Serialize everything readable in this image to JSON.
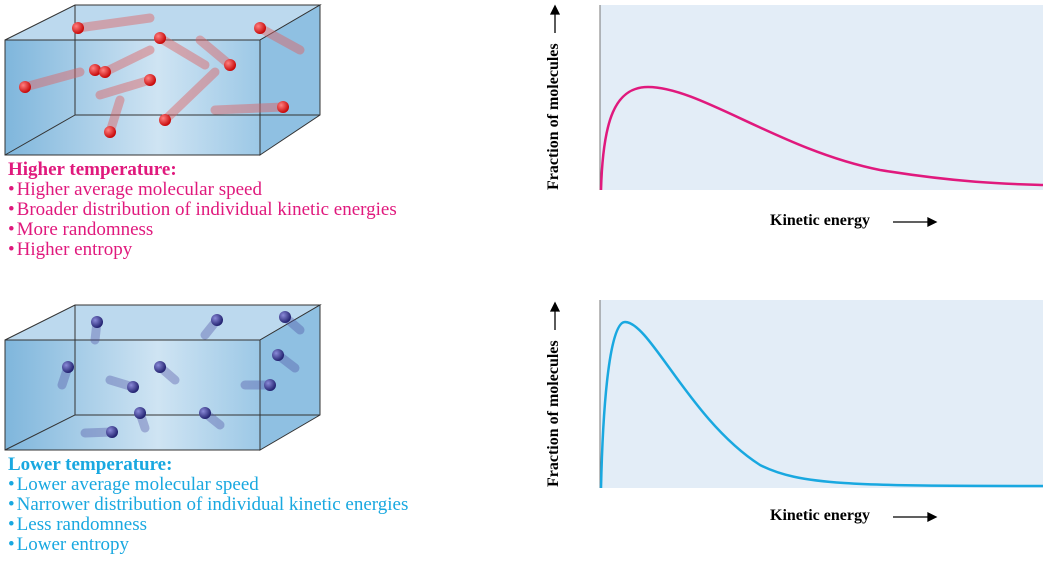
{
  "panels": [
    {
      "heading": "Higher temperature:",
      "bullets": [
        "Higher average molecular speed",
        "Broader distribution of individual kinetic energies",
        "More randomness",
        "Higher entropy"
      ],
      "graph": {
        "y_label": "Fraction of molecules",
        "x_label": "Kinetic energy"
      }
    },
    {
      "heading": "Lower temperature:",
      "bullets": [
        "Lower average molecular speed",
        "Narrower distribution of individual kinetic energies",
        "Less randomness",
        "Lower entropy"
      ],
      "graph": {
        "y_label": "Fraction of molecules",
        "x_label": "Kinetic energy"
      }
    }
  ]
}
